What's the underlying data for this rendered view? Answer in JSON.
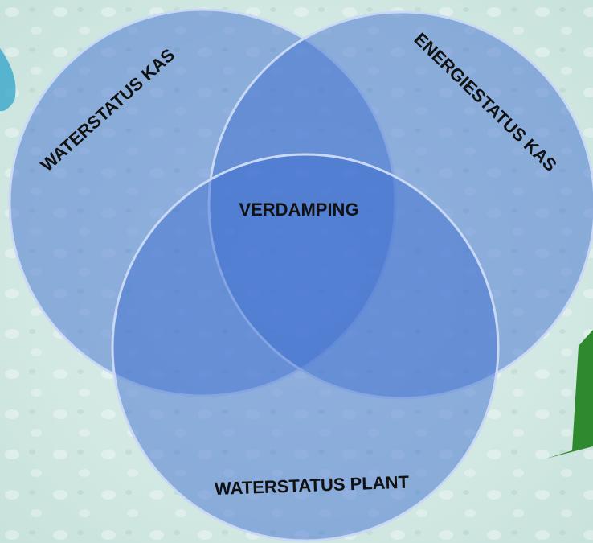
{
  "diagram": {
    "circles": [
      {
        "label": "WATERSTATUS KAS"
      },
      {
        "label": "ENERGIESTATUS KAS"
      },
      {
        "label": "WATERSTATUS PLANT"
      }
    ],
    "intersection": {
      "label": "VERDAMPING"
    }
  }
}
